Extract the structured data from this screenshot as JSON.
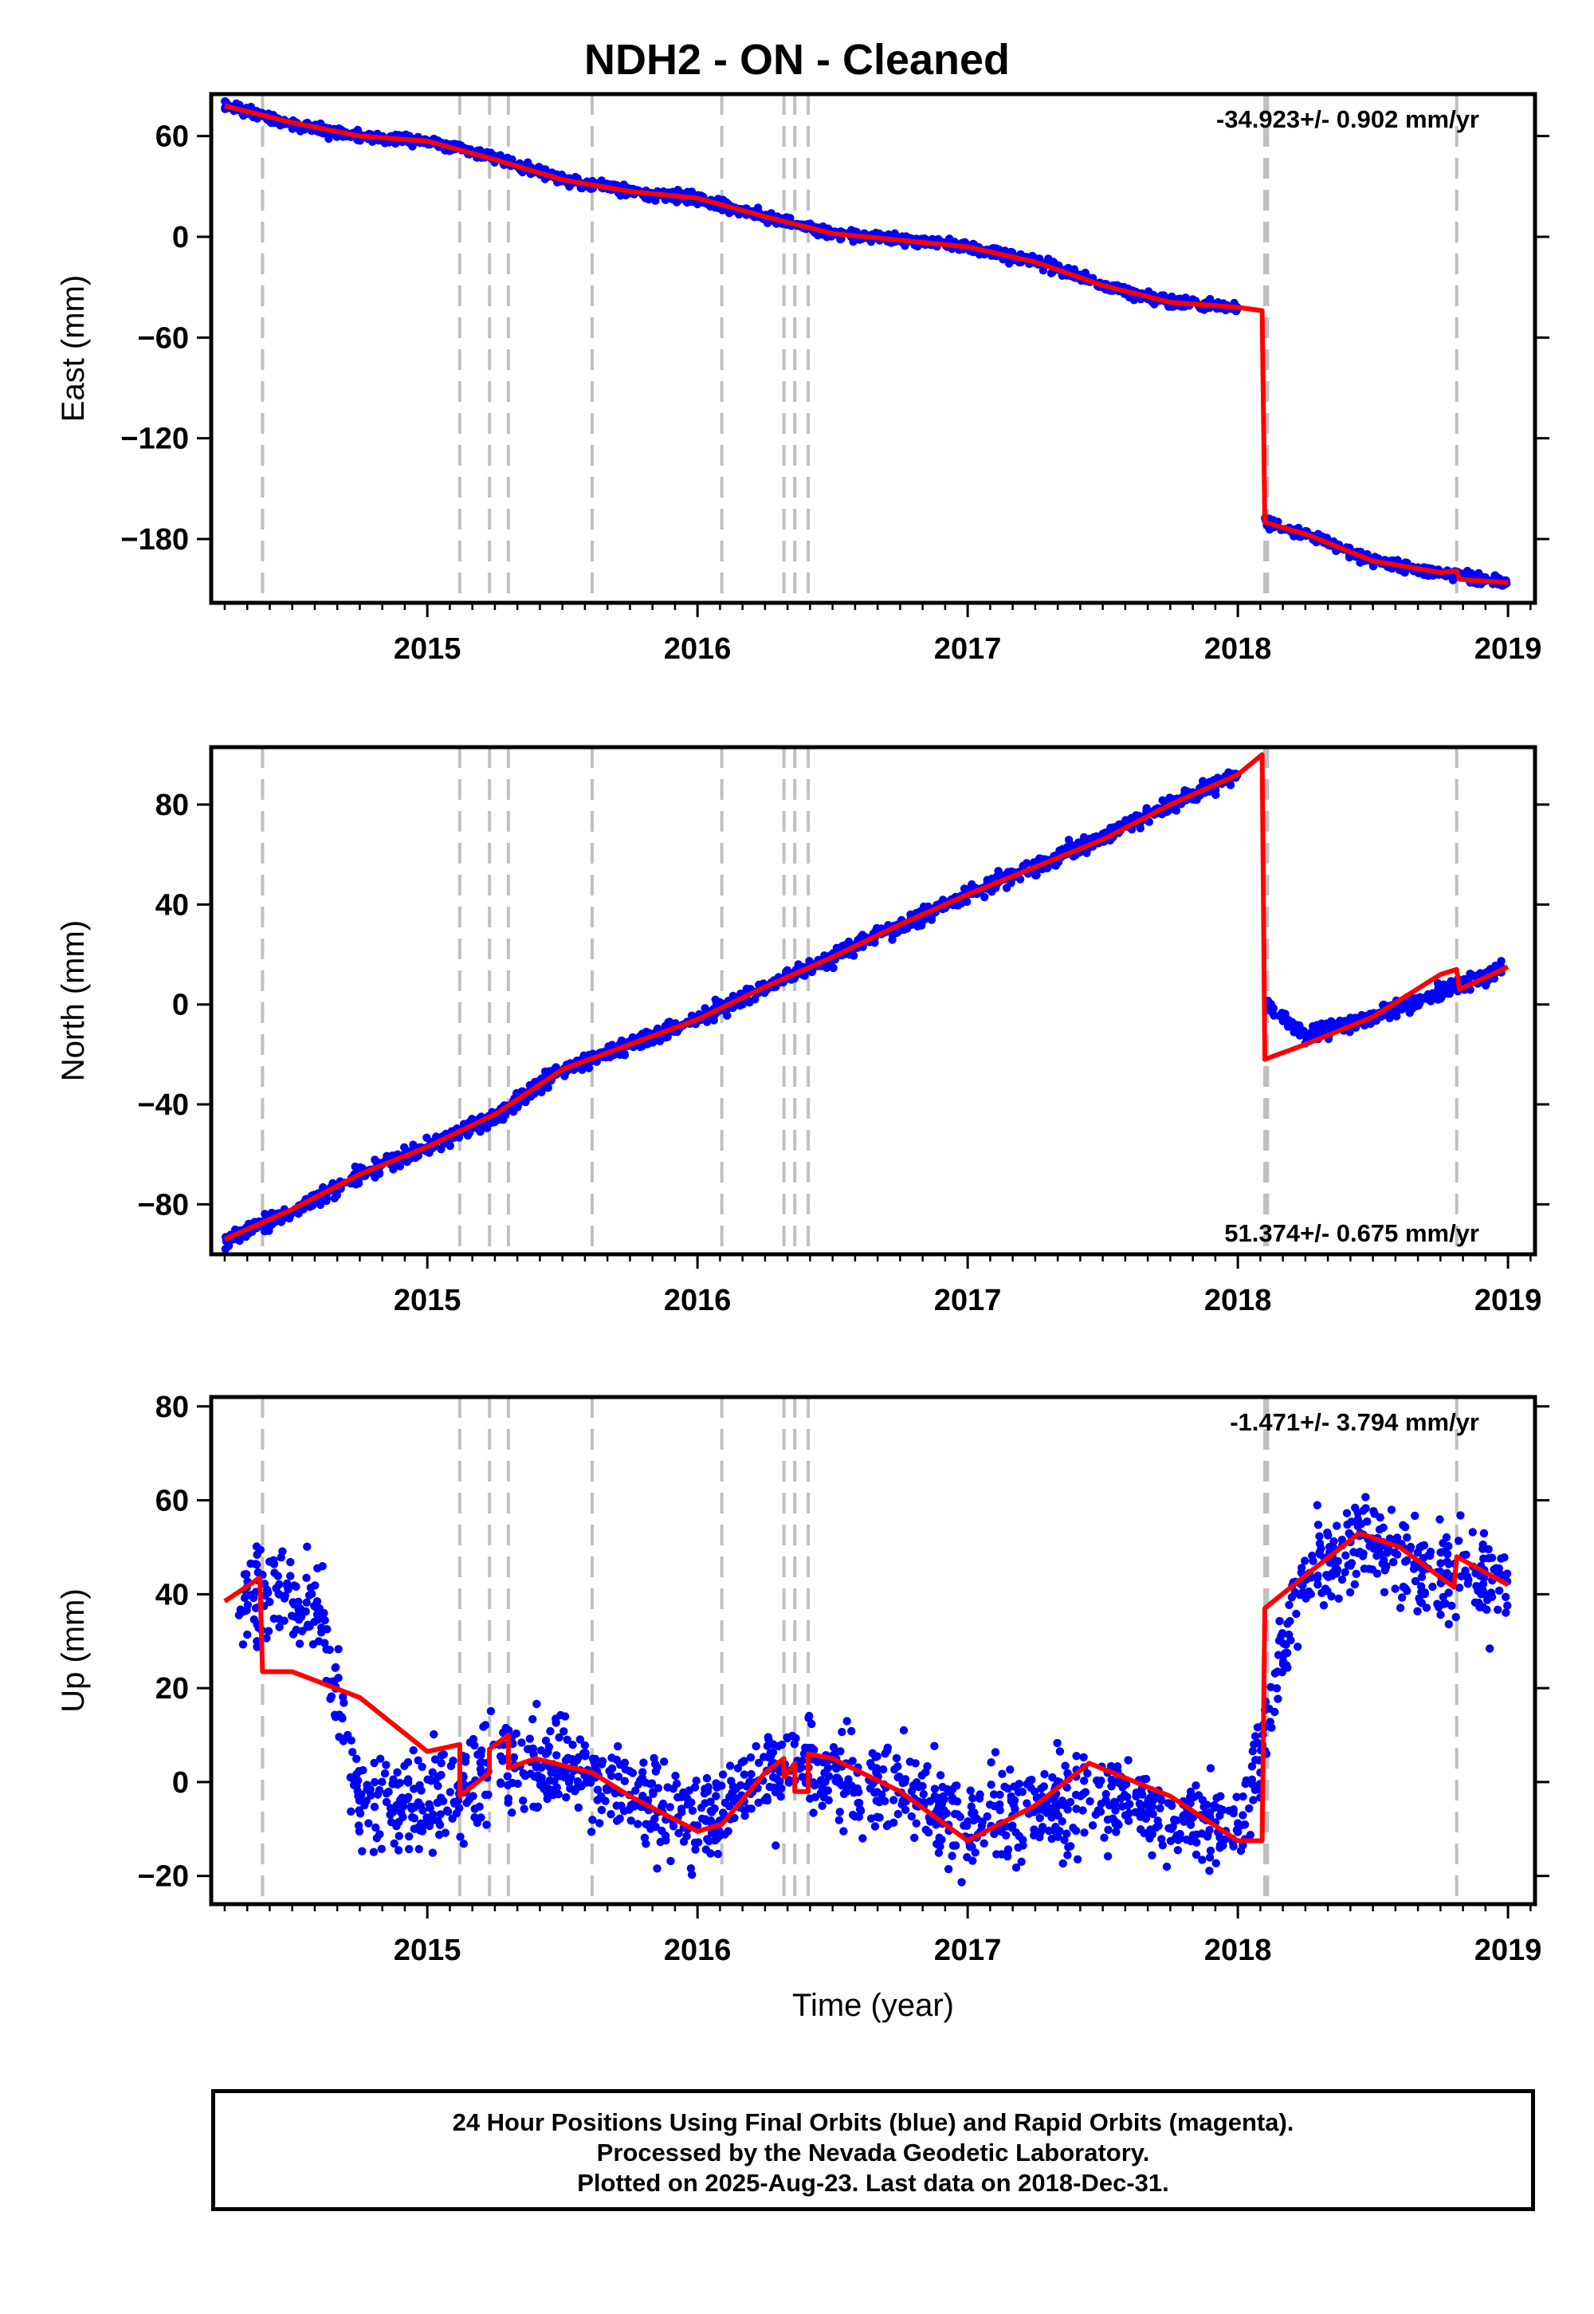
{
  "title": "NDH2  - ON - Cleaned",
  "colors": {
    "data": "#0000ff",
    "model": "#ff0000",
    "steps": "#c0c0c0",
    "frame": "#000000"
  },
  "chart_data": [
    {
      "type": "scatter",
      "name": "east",
      "ylabel": "East (mm)",
      "xlabel": "",
      "xlim": [
        2014.2,
        2019.1
      ],
      "ylim": [
        -218,
        85
      ],
      "xticks": [
        2015,
        2016,
        2017,
        2018,
        2019
      ],
      "yticks": [
        -180,
        -120,
        -60,
        0,
        60
      ],
      "rate_text": "-34.923+/- 0.902 mm/yr",
      "rate_position": "top-right",
      "step_epochs": [
        2014.39,
        2015.12,
        2015.23,
        2015.3,
        2015.61,
        2016.09,
        2016.32,
        2016.36,
        2016.41,
        2018.1,
        2018.11,
        2018.81
      ],
      "model_points": [
        [
          2014.25,
          78
        ],
        [
          2014.5,
          68
        ],
        [
          2014.75,
          60
        ],
        [
          2015.0,
          57
        ],
        [
          2015.25,
          46
        ],
        [
          2015.5,
          34
        ],
        [
          2015.75,
          27
        ],
        [
          2016.0,
          23
        ],
        [
          2016.25,
          12
        ],
        [
          2016.5,
          2
        ],
        [
          2016.75,
          -2
        ],
        [
          2017.0,
          -6
        ],
        [
          2017.25,
          -15
        ],
        [
          2017.5,
          -29
        ],
        [
          2017.75,
          -39
        ],
        [
          2018.0,
          -42
        ],
        [
          2018.09,
          -44
        ],
        [
          2018.1,
          -170
        ],
        [
          2018.25,
          -177
        ],
        [
          2018.5,
          -193
        ],
        [
          2018.75,
          -200
        ],
        [
          2018.81,
          -199
        ],
        [
          2018.82,
          -204
        ],
        [
          2019.0,
          -206
        ]
      ],
      "series": [
        {
          "values": [
            [
              2014.25,
              78
            ],
            [
              2014.5,
              67
            ],
            [
              2014.75,
              60
            ],
            [
              2015.0,
              57
            ],
            [
              2015.25,
              47
            ],
            [
              2015.5,
              34
            ],
            [
              2015.75,
              27
            ],
            [
              2016.0,
              23
            ],
            [
              2016.25,
              12
            ],
            [
              2016.5,
              2
            ],
            [
              2016.75,
              -1
            ],
            [
              2017.0,
              -6
            ],
            [
              2017.25,
              -14
            ],
            [
              2017.5,
              -29
            ],
            [
              2017.75,
              -39
            ],
            [
              2018.0,
              -42
            ],
            [
              2018.1,
              -170
            ],
            [
              2018.25,
              -177
            ],
            [
              2018.5,
              -193
            ],
            [
              2018.75,
              -200
            ],
            [
              2019.0,
              -206
            ]
          ]
        }
      ]
    },
    {
      "type": "scatter",
      "name": "north",
      "ylabel": "North (mm)",
      "xlabel": "",
      "xlim": [
        2014.2,
        2019.1
      ],
      "ylim": [
        -100,
        103
      ],
      "xticks": [
        2015,
        2016,
        2017,
        2018,
        2019
      ],
      "yticks": [
        -80,
        -40,
        0,
        40,
        80
      ],
      "rate_text": "51.374+/- 0.675 mm/yr",
      "rate_position": "bottom-right",
      "step_epochs": [
        2014.39,
        2015.12,
        2015.23,
        2015.3,
        2015.61,
        2016.09,
        2016.32,
        2016.36,
        2016.41,
        2018.1,
        2018.11,
        2018.81
      ],
      "model_points": [
        [
          2014.25,
          -94
        ],
        [
          2014.5,
          -82
        ],
        [
          2014.75,
          -68
        ],
        [
          2015.0,
          -57
        ],
        [
          2015.25,
          -44
        ],
        [
          2015.5,
          -26
        ],
        [
          2015.75,
          -16
        ],
        [
          2016.0,
          -6
        ],
        [
          2016.25,
          7
        ],
        [
          2016.5,
          19
        ],
        [
          2016.75,
          32
        ],
        [
          2017.0,
          44
        ],
        [
          2017.25,
          55
        ],
        [
          2017.5,
          66
        ],
        [
          2017.75,
          80
        ],
        [
          2018.0,
          92
        ],
        [
          2018.09,
          100
        ],
        [
          2018.1,
          -22
        ],
        [
          2018.25,
          -16
        ],
        [
          2018.5,
          -5
        ],
        [
          2018.75,
          12
        ],
        [
          2018.81,
          14
        ],
        [
          2018.82,
          6
        ],
        [
          2019.0,
          15
        ]
      ],
      "series": [
        {
          "values": [
            [
              2014.25,
              -94
            ],
            [
              2014.5,
              -83
            ],
            [
              2014.75,
              -68
            ],
            [
              2015.0,
              -57
            ],
            [
              2015.25,
              -45
            ],
            [
              2015.5,
              -26
            ],
            [
              2015.75,
              -16
            ],
            [
              2016.0,
              -6
            ],
            [
              2016.25,
              7
            ],
            [
              2016.5,
              19
            ],
            [
              2016.75,
              32
            ],
            [
              2017.0,
              44
            ],
            [
              2017.25,
              55
            ],
            [
              2017.5,
              67
            ],
            [
              2017.75,
              80
            ],
            [
              2018.0,
              92
            ],
            [
              2018.1,
              0
            ],
            [
              2018.25,
              -12
            ],
            [
              2018.5,
              -5
            ],
            [
              2018.75,
              5
            ],
            [
              2019.0,
              15
            ]
          ]
        }
      ]
    },
    {
      "type": "scatter",
      "name": "up",
      "ylabel": "Up (mm)",
      "xlabel": "Time (year)",
      "xlim": [
        2014.2,
        2019.1
      ],
      "ylim": [
        -26,
        82
      ],
      "xticks": [
        2015,
        2016,
        2017,
        2018,
        2019
      ],
      "yticks": [
        -20,
        0,
        20,
        40,
        60,
        80
      ],
      "rate_text": "-1.471+/- 3.794 mm/yr",
      "rate_position": "top-right",
      "step_epochs": [
        2014.39,
        2015.12,
        2015.23,
        2015.3,
        2015.61,
        2016.09,
        2016.32,
        2016.36,
        2016.41,
        2018.1,
        2018.11,
        2018.81
      ],
      "model_points": [
        [
          2014.25,
          38.5
        ],
        [
          2014.38,
          43.5
        ],
        [
          2014.39,
          23.5
        ],
        [
          2014.5,
          23.5
        ],
        [
          2014.75,
          18
        ],
        [
          2015.0,
          6.5
        ],
        [
          2015.12,
          8
        ],
        [
          2015.12,
          -3
        ],
        [
          2015.23,
          2
        ],
        [
          2015.23,
          7
        ],
        [
          2015.3,
          10
        ],
        [
          2015.3,
          3
        ],
        [
          2015.4,
          5
        ],
        [
          2015.61,
          2
        ],
        [
          2015.75,
          -3
        ],
        [
          2016.0,
          -10.5
        ],
        [
          2016.09,
          -9
        ],
        [
          2016.25,
          2
        ],
        [
          2016.32,
          5
        ],
        [
          2016.32,
          1
        ],
        [
          2016.36,
          4
        ],
        [
          2016.36,
          -2
        ],
        [
          2016.41,
          -2
        ],
        [
          2016.41,
          6
        ],
        [
          2016.5,
          5
        ],
        [
          2016.75,
          -2
        ],
        [
          2017.0,
          -12.5
        ],
        [
          2017.25,
          -5
        ],
        [
          2017.45,
          4
        ],
        [
          2017.75,
          -3
        ],
        [
          2018.0,
          -12.5
        ],
        [
          2018.09,
          -12.5
        ],
        [
          2018.1,
          37
        ],
        [
          2018.25,
          44
        ],
        [
          2018.45,
          53
        ],
        [
          2018.6,
          50
        ],
        [
          2018.8,
          41.5
        ],
        [
          2018.81,
          48
        ],
        [
          2019.0,
          42
        ]
      ],
      "series": [
        {
          "values": [
            [
              2014.3,
              38
            ],
            [
              2014.45,
              41
            ],
            [
              2014.6,
              36
            ],
            [
              2014.75,
              -4
            ],
            [
              2015.0,
              -5
            ],
            [
              2015.25,
              4
            ],
            [
              2015.5,
              4
            ],
            [
              2015.75,
              -2
            ],
            [
              2016.0,
              -9
            ],
            [
              2016.25,
              2
            ],
            [
              2016.5,
              3
            ],
            [
              2016.75,
              -1
            ],
            [
              2017.0,
              -11
            ],
            [
              2017.25,
              -5
            ],
            [
              2017.5,
              -4
            ],
            [
              2017.75,
              -7
            ],
            [
              2018.0,
              -10
            ],
            [
              2018.25,
              44
            ],
            [
              2018.45,
              52
            ],
            [
              2018.75,
              44
            ],
            [
              2019.0,
              43
            ]
          ]
        }
      ]
    }
  ],
  "footer": {
    "line1": "24 Hour Positions Using Final Orbits (blue) and Rapid Orbits (magenta).",
    "line2": "Processed by the Nevada Geodetic Laboratory.",
    "line3": "Plotted on 2025-Aug-23. Last data on 2018-Dec-31."
  }
}
